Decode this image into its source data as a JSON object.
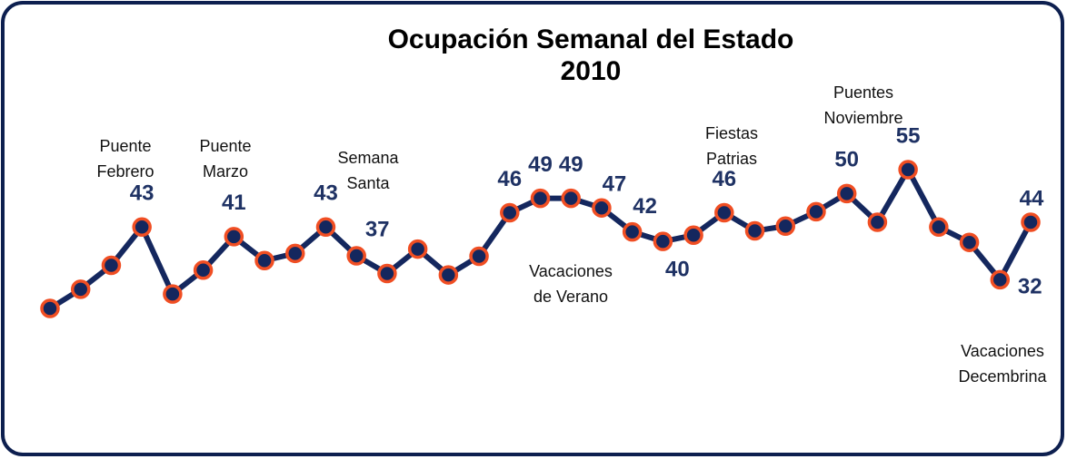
{
  "chart_data": {
    "type": "line",
    "title": [
      "Ocupación Semanal del Estado",
      "2010"
    ],
    "line_color": "#14275e",
    "marker_edge_color": "#f04e23",
    "values": [
      26,
      30,
      35,
      43,
      29,
      34,
      41,
      36,
      37.5,
      43,
      37,
      33.3,
      38.4,
      33,
      36.9,
      46,
      49,
      49,
      47,
      42,
      40,
      41.3,
      46,
      42.2,
      43.2,
      46.2,
      50,
      44,
      55,
      43,
      39.8,
      32,
      44
    ],
    "value_labels": [
      null,
      null,
      null,
      "43",
      null,
      null,
      "41",
      null,
      null,
      "43",
      "37",
      null,
      null,
      null,
      null,
      "46",
      "49",
      "49",
      "47",
      "42",
      "40",
      null,
      "46",
      null,
      null,
      null,
      "50",
      null,
      "55",
      null,
      null,
      "32",
      "44"
    ],
    "annotations": [
      [
        "Puente",
        "Febrero"
      ],
      [
        "Puente",
        "Marzo"
      ],
      [
        "Semana",
        "Santa"
      ],
      [
        "Vacaciones",
        "de Verano"
      ],
      [
        "Fiestas",
        "Patrias"
      ],
      [
        "Puentes",
        "Noviembre"
      ],
      [
        "Vacaciones",
        "Decembrina"
      ]
    ]
  }
}
